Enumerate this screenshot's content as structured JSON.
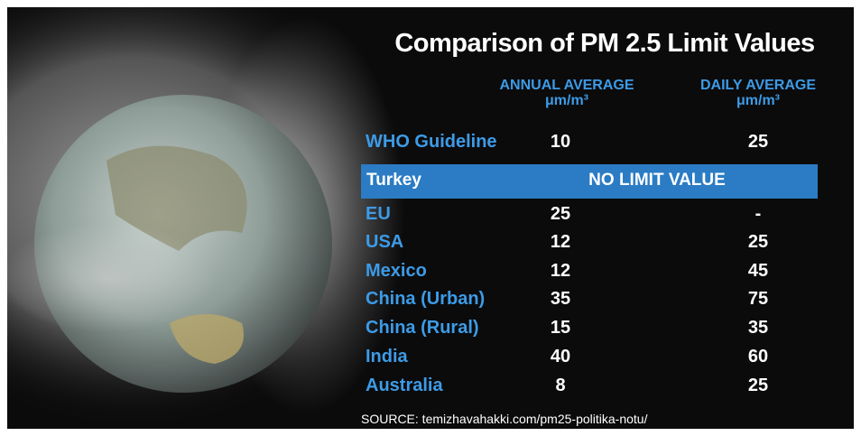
{
  "title": "Comparison of PM 2.5 Limit Values",
  "columns": [
    {
      "name": "ANNUAL AVERAGE",
      "unit": "μm/m³"
    },
    {
      "name": "DAILY AVERAGE",
      "unit": "μm/m³"
    }
  ],
  "highlight": {
    "label": "Turkey",
    "note": "NO LIMIT VALUE"
  },
  "rows": [
    [
      "WHO Guideline",
      10,
      25
    ],
    [
      "EU",
      25,
      "-"
    ],
    [
      "USA",
      12,
      25
    ],
    [
      "Mexico",
      12,
      45
    ],
    [
      "China (Urban)",
      35,
      75
    ],
    [
      "China (Rural)",
      15,
      35
    ],
    [
      "India",
      40,
      60
    ],
    [
      "Australia",
      8,
      25
    ]
  ],
  "source": "SOURCE: temizhavahakki.com/pm25-politika-notu/"
}
